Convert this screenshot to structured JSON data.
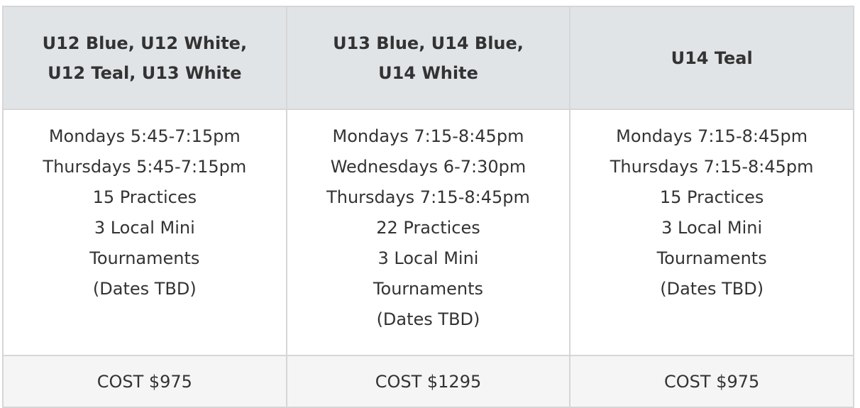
{
  "columns": [
    {
      "header": [
        "U12 Blue, U12 White,",
        "U12 Teal, U13 White"
      ],
      "lines": [
        "Mondays 5:45-7:15pm",
        "Thursdays 5:45-7:15pm",
        "15 Practices",
        "3 Local Mini",
        "Tournaments",
        "(Dates TBD)"
      ],
      "cost": "COST $975"
    },
    {
      "header": [
        "U13 Blue, U14 Blue,",
        "U14 White"
      ],
      "lines": [
        "Mondays 7:15-8:45pm",
        "Wednesdays 6-7:30pm",
        "Thursdays 7:15-8:45pm",
        "22 Practices",
        "3 Local Mini",
        "Tournaments",
        "(Dates TBD)"
      ],
      "cost": "COST $1295"
    },
    {
      "header": [
        "U14 Teal"
      ],
      "lines": [
        "Mondays 7:15-8:45pm",
        "Thursdays 7:15-8:45pm",
        "15 Practices",
        "3 Local Mini",
        "Tournaments",
        "(Dates TBD)"
      ],
      "cost": "COST $975"
    }
  ]
}
